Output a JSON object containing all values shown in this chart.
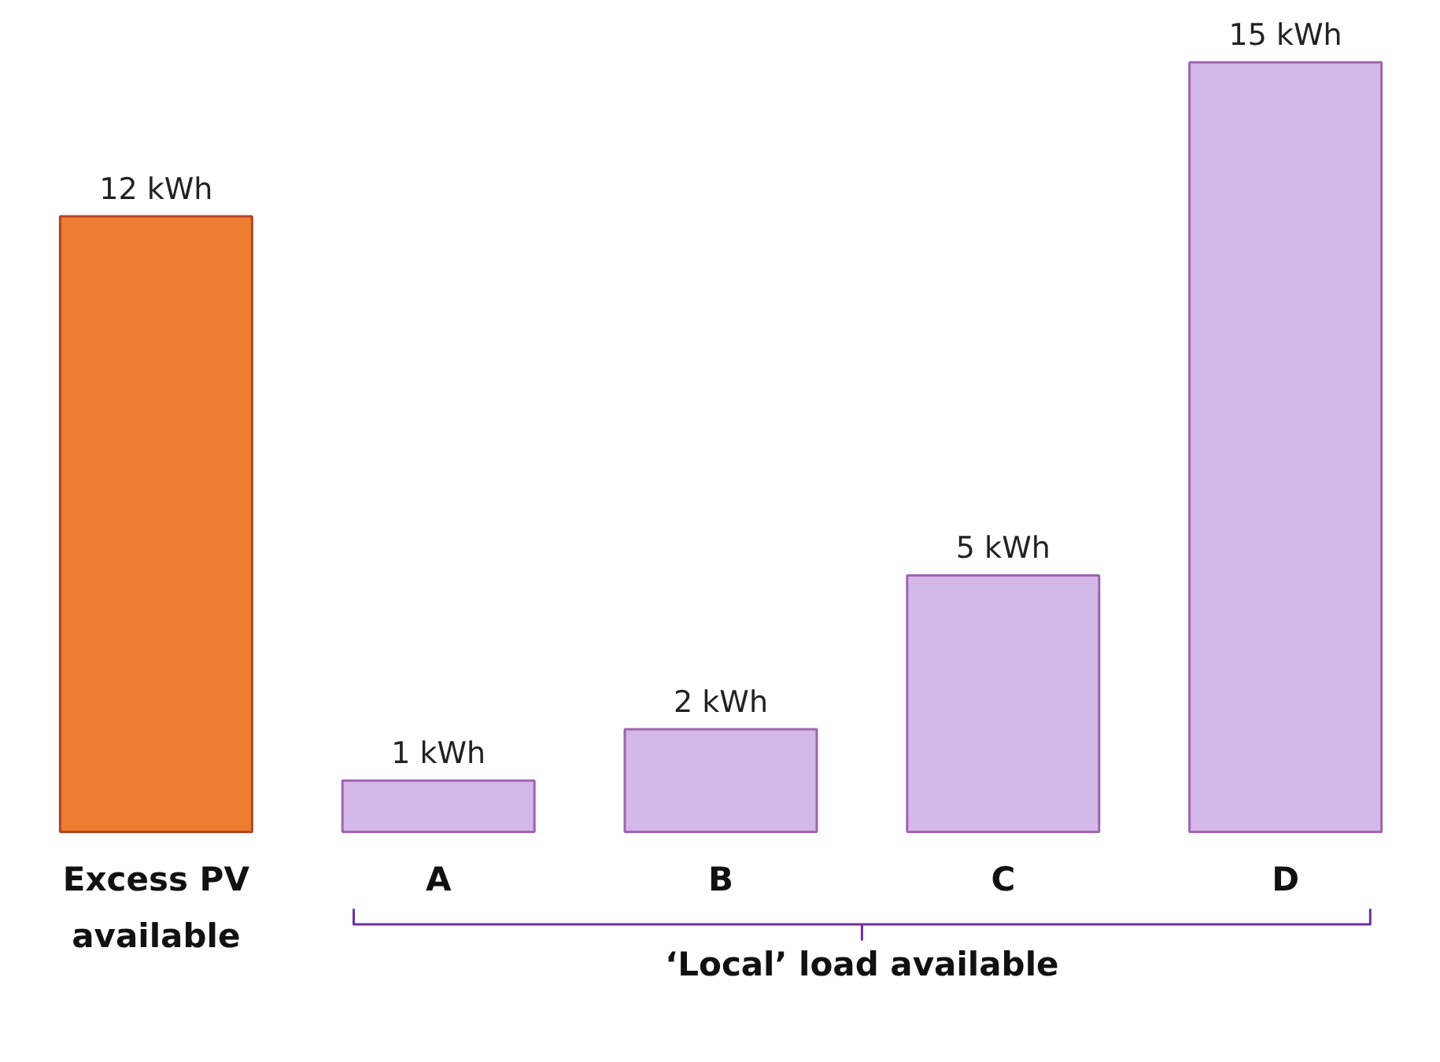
{
  "chart_data": {
    "type": "bar",
    "categories": [
      "Excess PV available",
      "A",
      "B",
      "C",
      "D"
    ],
    "values": [
      12,
      1,
      2,
      5,
      15
    ],
    "colors": [
      "#ed7d31",
      "#d5b8ea",
      "#d5b8ea",
      "#d5b8ea",
      "#d5b8ea"
    ],
    "value_labels": [
      "12 kWh",
      "1 kWh",
      "2 kWh",
      "5 kWh",
      "15 kWh"
    ],
    "annotations": [
      "‘Local’ load available"
    ],
    "grid": false
  }
}
